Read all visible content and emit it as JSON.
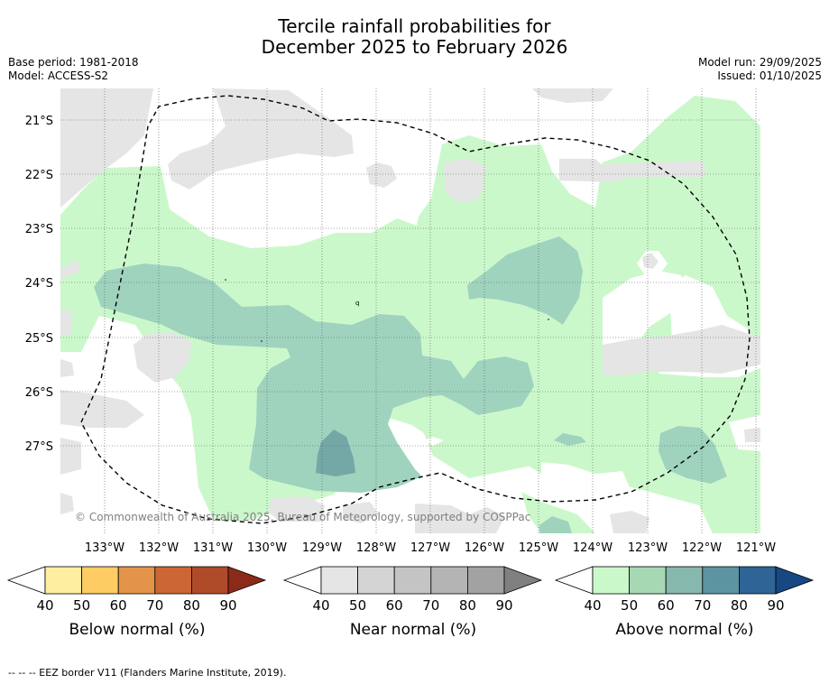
{
  "title": {
    "line1": "Tercile rainfall probabilities for",
    "line2": "December 2025 to February 2026"
  },
  "meta": {
    "base_period": "Base period: 1981-2018",
    "model": "Model: ACCESS-S2",
    "model_run": "Model run: 29/09/2025",
    "issued": "Issued: 01/10/2025"
  },
  "map": {
    "lat_labels": [
      "21°S",
      "22°S",
      "23°S",
      "24°S",
      "25°S",
      "26°S",
      "27°S"
    ],
    "lon_labels": [
      "133°W",
      "132°W",
      "131°W",
      "130°W",
      "129°W",
      "128°W",
      "127°W",
      "126°W",
      "125°W",
      "124°W",
      "123°W",
      "122°W",
      "121°W"
    ],
    "copyright": "© Commonwealth of Australia 2025, Bureau of Meteorology, supported by COSPPac"
  },
  "legend": {
    "tick_labels": [
      "40",
      "50",
      "60",
      "70",
      "80",
      "90"
    ],
    "below": {
      "label": "Below normal (%)",
      "colors": [
        "#fdeea0",
        "#fdcc62",
        "#e3944a",
        "#cd6635",
        "#b04b29",
        "#8c2a1a"
      ]
    },
    "near": {
      "label": "Near normal (%)",
      "colors": [
        "#e5e5e5",
        "#d4d4d4",
        "#c4c4c4",
        "#b4b4b4",
        "#a2a2a2",
        "#808080"
      ]
    },
    "above": {
      "label": "Above normal (%)",
      "colors": [
        "#cbf8cb",
        "#a7d8b4",
        "#86b8ae",
        "#5d94a2",
        "#2f6496",
        "#174883"
      ]
    }
  },
  "colors": {
    "near_40": "#e5e5e5",
    "above_40": "#cbf8cb",
    "above_50": "#9fd3be",
    "above_60": "#74a8a6"
  },
  "footer": "--  --  -- EEZ border V11 (Flanders Marine Institute, 2019)."
}
